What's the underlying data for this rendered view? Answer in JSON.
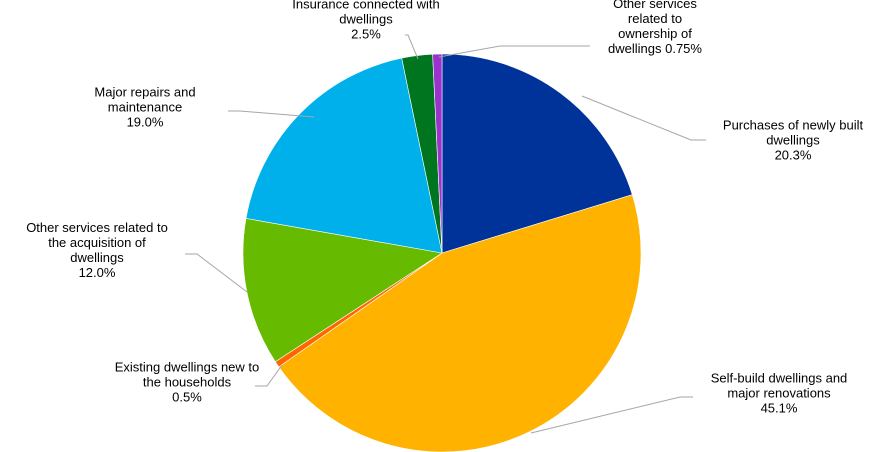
{
  "chart_data": {
    "type": "pie",
    "start_angle": "12 o'clock, clockwise",
    "slices": [
      {
        "label_lines": [
          "Purchases of newly built",
          "dwellings",
          "20.3%"
        ],
        "value": 20.3,
        "color": "#003399"
      },
      {
        "label_lines": [
          "Self-build dwellings and",
          "major renovations",
          "45.1%"
        ],
        "value": 45.1,
        "color": "#FFB300"
      },
      {
        "label_lines": [
          "Existing dwellings new to",
          "the households",
          "0.5%"
        ],
        "value": 0.5,
        "color": "#FF6600"
      },
      {
        "label_lines": [
          "Other services related to",
          "the acquisition of",
          "dwellings",
          "12.0%"
        ],
        "value": 12.0,
        "color": "#66BB00"
      },
      {
        "label_lines": [
          "Major repairs and",
          "maintenance",
          "19.0%"
        ],
        "value": 19.0,
        "color": "#00B0EB"
      },
      {
        "label_lines": [
          "Insurance connected with",
          "dwellings",
          "2.5%"
        ],
        "value": 2.5,
        "color": "#00751F"
      },
      {
        "label_lines": [
          "Other services",
          "related to",
          "ownership of",
          "dwellings 0.75%"
        ],
        "value": 0.75,
        "color": "#9933CC"
      }
    ]
  }
}
